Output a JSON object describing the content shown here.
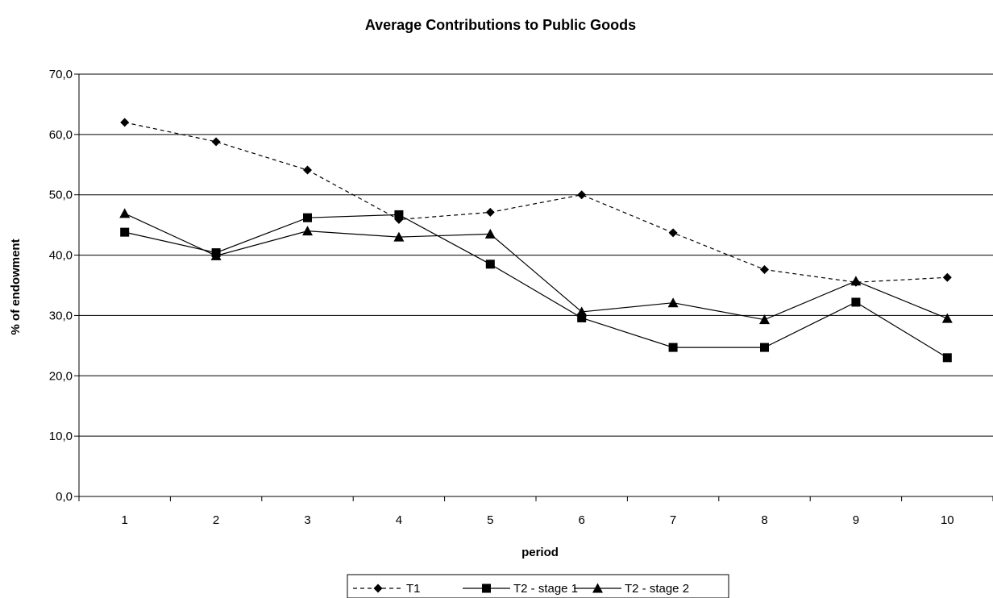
{
  "chart_data": {
    "type": "line",
    "title": "Average Contributions to Public Goods",
    "xlabel": "period",
    "ylabel": "% of endowment",
    "categories": [
      "1",
      "2",
      "3",
      "4",
      "5",
      "6",
      "7",
      "8",
      "9",
      "10"
    ],
    "ylim": [
      0,
      70
    ],
    "yticks": [
      "0,0",
      "10,0",
      "20,0",
      "30,0",
      "40,0",
      "50,0",
      "60,0",
      "70,0"
    ],
    "grid": true,
    "legend_position": "bottom",
    "series": [
      {
        "name": "T1",
        "marker": "diamond",
        "line": "dashed",
        "values": [
          62.0,
          58.8,
          54.1,
          45.9,
          47.1,
          50.0,
          43.7,
          37.6,
          35.5,
          36.3
        ]
      },
      {
        "name": "T2 - stage 1",
        "marker": "square",
        "line": "solid",
        "values": [
          43.8,
          40.4,
          46.2,
          46.7,
          38.5,
          29.6,
          24.7,
          24.7,
          32.2,
          23.0
        ]
      },
      {
        "name": "T2 - stage 2",
        "marker": "triangle",
        "line": "solid",
        "values": [
          46.9,
          39.9,
          44.0,
          43.0,
          43.5,
          30.6,
          32.1,
          29.3,
          35.7,
          29.5
        ]
      }
    ]
  }
}
